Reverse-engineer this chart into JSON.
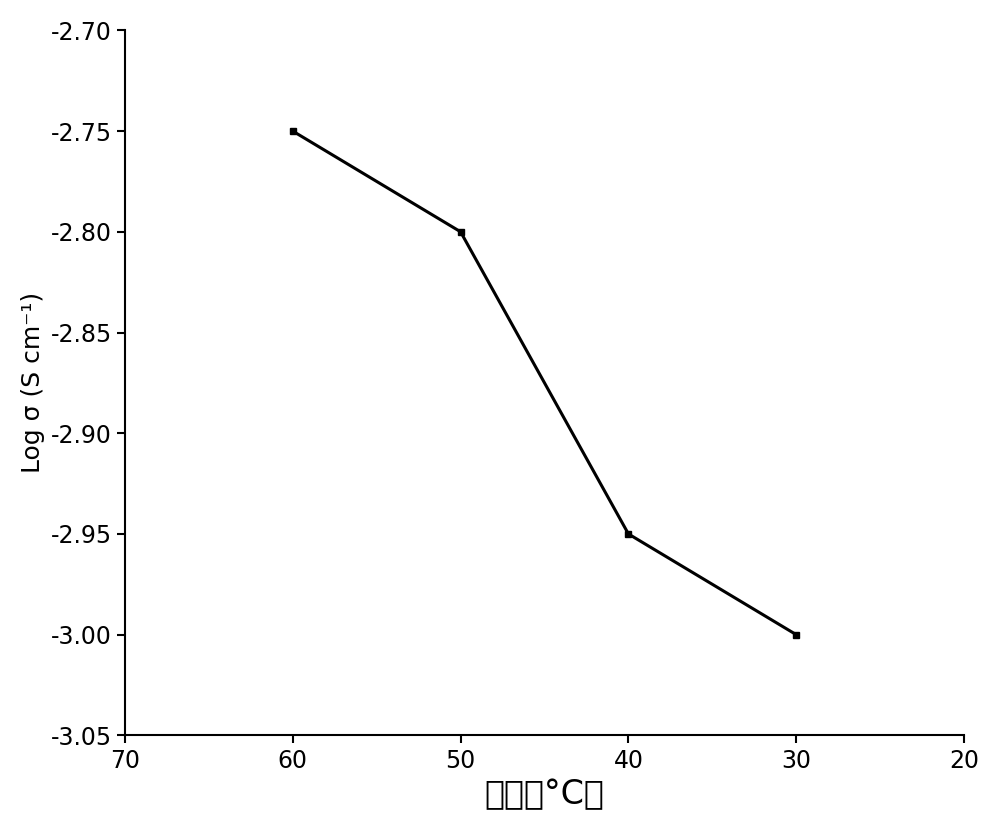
{
  "x": [
    60,
    50,
    40,
    30
  ],
  "y": [
    -2.75,
    -2.8,
    -2.95,
    -3.0
  ],
  "xlim": [
    70,
    20
  ],
  "ylim": [
    -3.05,
    -2.7
  ],
  "xticks": [
    70,
    60,
    50,
    40,
    30,
    20
  ],
  "yticks": [
    -3.05,
    -3.0,
    -2.95,
    -2.9,
    -2.85,
    -2.8,
    -2.75,
    -2.7
  ],
  "xlabel": "温度（°C）",
  "ylabel": "Log σ (S cm⁻¹)",
  "line_color": "#000000",
  "line_width": 2.2,
  "marker": "s",
  "marker_size": 5,
  "background_color": "#ffffff",
  "xlabel_fontsize": 24,
  "ylabel_fontsize": 18,
  "tick_fontsize": 17
}
